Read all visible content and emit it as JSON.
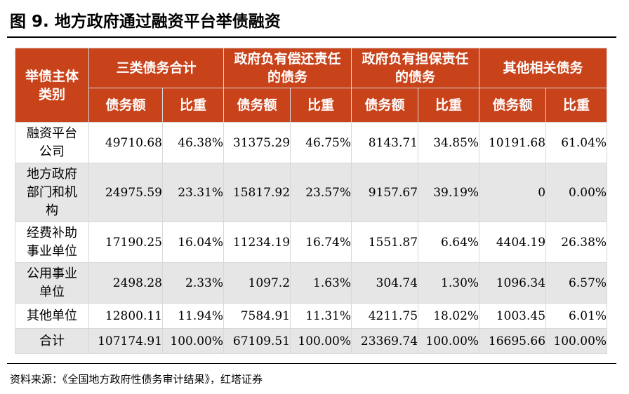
{
  "figure": {
    "title": "图 9. 地方政府通过融资平台举债融资",
    "source": "资料来源：《全国地方政府性债务审计结果》，红塔证券"
  },
  "table": {
    "header": {
      "col0": "举债主体类别",
      "groups": [
        "三类债务合计",
        "政府负有偿还责任的债务",
        "政府负有担保责任的债务",
        "其他相关债务"
      ],
      "sub": [
        "债务额",
        "比重"
      ]
    },
    "rows": [
      {
        "label": "融资平台公司",
        "values": [
          "49710.68",
          "46.38%",
          "31375.29",
          "46.75%",
          "8143.71",
          "34.85%",
          "10191.68",
          "61.04%"
        ]
      },
      {
        "label": "地方政府部门和机构",
        "values": [
          "24975.59",
          "23.31%",
          "15817.92",
          "23.57%",
          "9157.67",
          "39.19%",
          "0",
          "0.00%"
        ]
      },
      {
        "label": "经费补助事业单位",
        "values": [
          "17190.25",
          "16.04%",
          "11234.19",
          "16.74%",
          "1551.87",
          "6.64%",
          "4404.19",
          "26.38%"
        ]
      },
      {
        "label": "公用事业单位",
        "values": [
          "2498.28",
          "2.33%",
          "1097.2",
          "1.63%",
          "304.74",
          "1.30%",
          "1096.34",
          "6.57%"
        ]
      },
      {
        "label": "其他单位",
        "values": [
          "12800.11",
          "11.94%",
          "7584.91",
          "11.31%",
          "4211.75",
          "18.02%",
          "1003.45",
          "6.01%"
        ]
      },
      {
        "label": "合计",
        "values": [
          "107174.91",
          "100.00%",
          "67109.51",
          "100.00%",
          "23369.74",
          "100.00%",
          "16695.66",
          "100.00%"
        ]
      }
    ]
  },
  "colors": {
    "header_bg": "#c8421a",
    "header_text": "#ffffff",
    "shade": "#e6e6e6"
  }
}
